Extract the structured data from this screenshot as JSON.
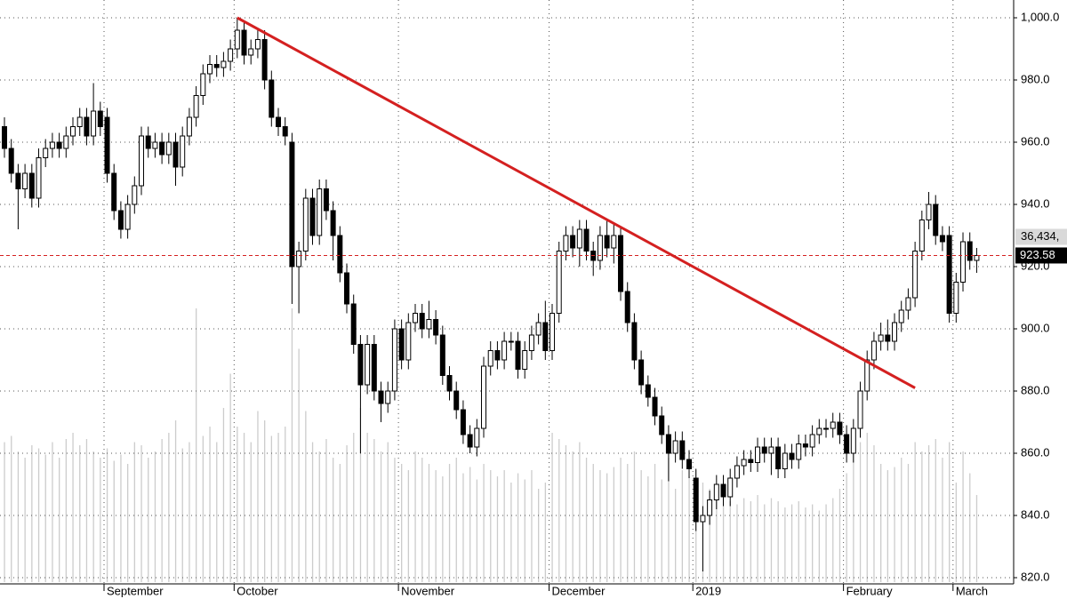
{
  "chart_data": {
    "type": "candlestick",
    "xlim": [
      -0.65,
      147.4
    ],
    "ylim": [
      820,
      1000
    ],
    "yticks": [
      {
        "value": 1000,
        "label": "1,000.0"
      },
      {
        "value": 980,
        "label": "980.0"
      },
      {
        "value": 960,
        "label": "960.0"
      },
      {
        "value": 940,
        "label": "940.0"
      },
      {
        "value": 920,
        "label": "920.0"
      },
      {
        "value": 900,
        "label": "900.0"
      },
      {
        "value": 880,
        "label": "880.0"
      },
      {
        "value": 860,
        "label": "860.0"
      },
      {
        "value": 840,
        "label": "840.0"
      },
      {
        "value": 820,
        "label": "820.0"
      }
    ],
    "xticks": [
      {
        "value": 15,
        "label": "September"
      },
      {
        "value": 34,
        "label": "October"
      },
      {
        "value": 58,
        "label": "November"
      },
      {
        "value": 80,
        "label": "December"
      },
      {
        "value": 101,
        "label": "2019"
      },
      {
        "value": 123,
        "label": "February"
      },
      {
        "value": 139,
        "label": "March"
      }
    ],
    "grid": true,
    "up_color": "#ffffff",
    "down_color": "#000000",
    "volume_color": "#cccccc",
    "open": [
      965,
      958,
      950,
      945,
      950,
      942,
      955,
      958,
      960,
      958,
      962,
      965,
      968,
      962,
      970,
      968,
      950,
      938,
      932,
      940,
      946,
      962,
      958,
      960,
      956,
      960,
      952,
      962,
      968,
      975,
      982,
      985,
      984,
      986,
      990,
      996,
      988,
      990,
      993,
      980,
      968,
      965,
      960,
      920,
      925,
      942,
      930,
      945,
      938,
      930,
      918,
      908,
      895,
      882,
      895,
      880,
      876,
      880,
      900,
      890,
      902,
      905,
      900,
      903,
      898,
      885,
      880,
      874,
      866,
      862,
      868,
      888,
      893,
      890,
      896,
      896,
      887,
      893,
      898,
      902,
      893,
      905,
      925,
      930,
      926,
      932,
      925,
      922,
      930,
      926,
      930,
      912,
      902,
      890,
      882,
      878,
      872,
      866,
      860,
      864,
      858,
      852,
      838,
      840,
      845,
      850,
      846,
      852,
      856,
      858,
      857,
      862,
      860,
      862,
      855,
      860,
      858,
      863,
      862,
      866,
      868,
      868,
      870,
      866,
      860,
      868,
      880,
      890,
      896,
      898,
      896,
      902,
      906,
      910,
      925,
      935,
      940,
      930,
      930,
      905,
      915,
      928,
      922
    ],
    "high": [
      968,
      961,
      953,
      953,
      953,
      958,
      961,
      963,
      963,
      965,
      968,
      971,
      971,
      979,
      973,
      971,
      953,
      941,
      943,
      949,
      965,
      965,
      963,
      963,
      963,
      963,
      965,
      971,
      978,
      985,
      988,
      988,
      989,
      993,
      1000,
      999,
      993,
      996,
      996,
      983,
      971,
      968,
      963,
      928,
      945,
      945,
      948,
      948,
      941,
      933,
      921,
      911,
      898,
      898,
      898,
      883,
      883,
      903,
      903,
      905,
      908,
      908,
      909,
      906,
      901,
      888,
      883,
      877,
      869,
      871,
      891,
      896,
      896,
      899,
      899,
      899,
      896,
      901,
      905,
      909,
      908,
      928,
      933,
      933,
      935,
      935,
      928,
      933,
      935,
      934,
      933,
      915,
      905,
      893,
      885,
      881,
      875,
      869,
      867,
      867,
      861,
      855,
      843,
      848,
      853,
      853,
      855,
      859,
      861,
      861,
      865,
      865,
      865,
      865,
      863,
      863,
      866,
      866,
      869,
      871,
      871,
      873,
      873,
      869,
      871,
      883,
      893,
      899,
      902,
      903,
      905,
      909,
      913,
      928,
      938,
      944,
      943,
      933,
      933,
      918,
      931,
      931,
      926
    ],
    "low": [
      955,
      947,
      932,
      942,
      939,
      939,
      952,
      955,
      955,
      955,
      959,
      962,
      959,
      959,
      962,
      947,
      935,
      929,
      929,
      937,
      943,
      955,
      955,
      953,
      953,
      946,
      949,
      959,
      965,
      972,
      979,
      981,
      981,
      983,
      987,
      985,
      985,
      987,
      977,
      965,
      962,
      959,
      908,
      905,
      922,
      927,
      927,
      935,
      922,
      915,
      905,
      892,
      860,
      879,
      877,
      870,
      873,
      877,
      887,
      887,
      899,
      897,
      897,
      895,
      882,
      877,
      871,
      863,
      860,
      859,
      865,
      885,
      887,
      887,
      893,
      884,
      884,
      890,
      895,
      890,
      890,
      902,
      922,
      923,
      920,
      922,
      917,
      919,
      923,
      921,
      909,
      899,
      887,
      879,
      875,
      869,
      863,
      851,
      857,
      855,
      852,
      835,
      822,
      837,
      842,
      843,
      843,
      849,
      853,
      854,
      854,
      857,
      853,
      852,
      852,
      855,
      855,
      859,
      859,
      863,
      865,
      865,
      863,
      857,
      857,
      865,
      877,
      887,
      893,
      893,
      893,
      899,
      903,
      907,
      922,
      932,
      927,
      925,
      902,
      902,
      912,
      919,
      918
    ],
    "close": [
      958,
      950,
      945,
      950,
      942,
      955,
      958,
      960,
      958,
      962,
      965,
      968,
      962,
      970,
      965,
      950,
      938,
      932,
      940,
      946,
      962,
      958,
      960,
      956,
      960,
      952,
      962,
      968,
      975,
      982,
      985,
      984,
      986,
      990,
      996,
      988,
      990,
      993,
      980,
      968,
      965,
      962,
      920,
      925,
      942,
      930,
      945,
      938,
      930,
      918,
      908,
      895,
      882,
      895,
      880,
      876,
      880,
      900,
      890,
      902,
      905,
      900,
      903,
      898,
      885,
      880,
      874,
      866,
      862,
      868,
      888,
      893,
      890,
      896,
      896,
      887,
      893,
      898,
      902,
      893,
      905,
      925,
      930,
      926,
      932,
      925,
      922,
      930,
      926,
      930,
      912,
      902,
      890,
      882,
      878,
      872,
      866,
      860,
      864,
      858,
      855,
      838,
      840,
      845,
      850,
      846,
      852,
      856,
      858,
      857,
      862,
      860,
      862,
      855,
      860,
      858,
      863,
      862,
      866,
      868,
      868,
      870,
      866,
      860,
      868,
      880,
      890,
      896,
      898,
      896,
      902,
      906,
      910,
      925,
      935,
      940,
      930,
      928,
      905,
      915,
      928,
      922,
      923.58
    ],
    "volume": [
      45,
      47,
      42,
      40,
      44,
      43,
      41,
      45,
      40,
      46,
      48,
      44,
      46,
      42,
      40,
      43,
      39,
      41,
      38,
      45,
      44,
      40,
      42,
      46,
      48,
      52,
      43,
      45,
      88,
      47,
      50,
      45,
      56,
      67,
      50,
      48,
      45,
      55,
      52,
      47,
      48,
      50,
      88,
      75,
      55,
      45,
      42,
      46,
      40,
      38,
      44,
      48,
      56,
      48,
      46,
      42,
      45,
      40,
      38,
      36,
      42,
      40,
      38,
      36,
      34,
      38,
      40,
      35,
      37,
      33,
      38,
      36,
      34,
      36,
      32,
      35,
      33,
      36,
      30,
      32,
      48,
      46,
      44,
      42,
      45,
      40,
      38,
      36,
      35,
      37,
      40,
      38,
      42,
      36,
      34,
      38,
      33,
      40,
      30,
      36,
      34,
      36,
      32,
      30,
      28,
      27,
      26,
      25,
      27,
      26,
      28,
      25,
      27,
      26,
      24,
      25,
      26,
      24,
      25,
      23,
      25,
      27,
      30,
      35,
      42,
      45,
      48,
      44,
      38,
      36,
      37,
      40,
      38,
      45,
      42,
      44,
      46,
      40,
      45,
      32,
      42,
      35,
      28
    ],
    "trendline": {
      "from": {
        "x": 34,
        "y": 1000
      },
      "to": {
        "x": 133,
        "y": 881
      },
      "color": "#d42020"
    },
    "last_price": 923.58,
    "last_volume_label": "36,434,"
  }
}
